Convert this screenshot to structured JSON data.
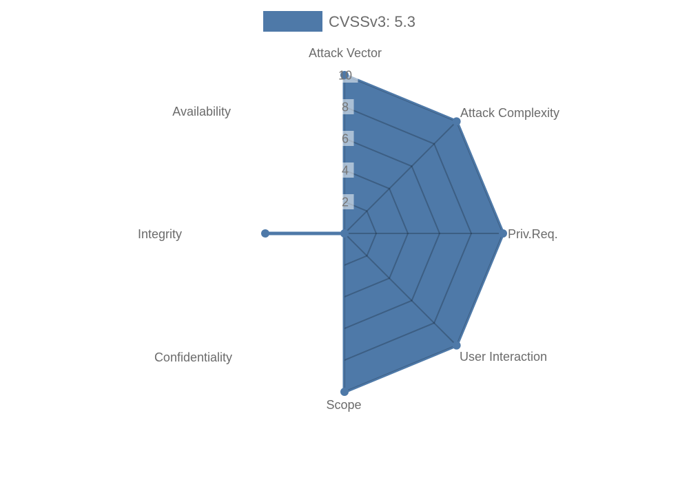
{
  "legend": {
    "label": "CVSSv3: 5.3",
    "swatch_color": "#4e79a8"
  },
  "chart_data": {
    "type": "radar",
    "categories": [
      "Attack Vector",
      "Attack Complexity",
      "Priv.Req.",
      "User Interaction",
      "Scope",
      "Confidentiality",
      "Integrity",
      "Availability"
    ],
    "series": [
      {
        "name": "CVSSv3: 5.3",
        "values": [
          10,
          10,
          10,
          10,
          10,
          0,
          5,
          0
        ]
      }
    ],
    "ticks": [
      2,
      4,
      6,
      8,
      10
    ],
    "rlim": [
      0,
      10
    ],
    "grid": "web-rings-and-spokes-visible-only-inside-fill",
    "legend_position": "top-center",
    "colors": {
      "fill": "#4e79a8",
      "stroke": "#4e79a8",
      "grid_line": "rgba(0,0,0,0.22)",
      "axis_label_text": "#6b6b6b",
      "tick_text": "#757575",
      "tick_box": "rgba(255,255,255,0.52)",
      "legend_text": "#6b6b6b"
    }
  }
}
